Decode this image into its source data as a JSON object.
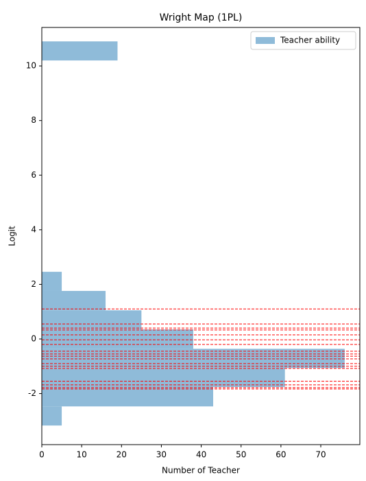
{
  "chart_data": {
    "type": "histogram",
    "orientation": "horizontal",
    "title": "Wright Map (1PL)",
    "xlabel": "Number of Teacher",
    "ylabel": "Logit",
    "series_name": "Teacher ability",
    "color": "#8fbbd9",
    "bins": [
      -3.17,
      -2.47,
      -1.76,
      -1.06,
      -0.36,
      0.35,
      1.05,
      1.76,
      2.46,
      3.16,
      3.87,
      4.57,
      5.27,
      5.98,
      6.68,
      7.38,
      8.09,
      8.79,
      9.49,
      10.2,
      10.9
    ],
    "values": [
      5,
      43,
      61,
      76,
      38,
      25,
      16,
      5,
      0,
      0,
      0,
      0,
      0,
      0,
      0,
      0,
      0,
      0,
      0,
      19
    ],
    "hlines": [
      1.1,
      0.55,
      0.4,
      0.33,
      0.15,
      -0.03,
      -0.2,
      -0.45,
      -0.55,
      -0.63,
      -0.73,
      -0.9,
      -1.0,
      -1.08,
      -1.55,
      -1.68,
      -1.78,
      -1.83
    ],
    "hline_color": "#ff0000",
    "xlim": [
      0,
      79.8
    ],
    "xticks": [
      0,
      10,
      20,
      30,
      40,
      50,
      60,
      70
    ],
    "ylim": [
      -3.87,
      11.41
    ],
    "yticks": [
      -2,
      0,
      2,
      4,
      6,
      8,
      10
    ],
    "legend": "upper right"
  }
}
